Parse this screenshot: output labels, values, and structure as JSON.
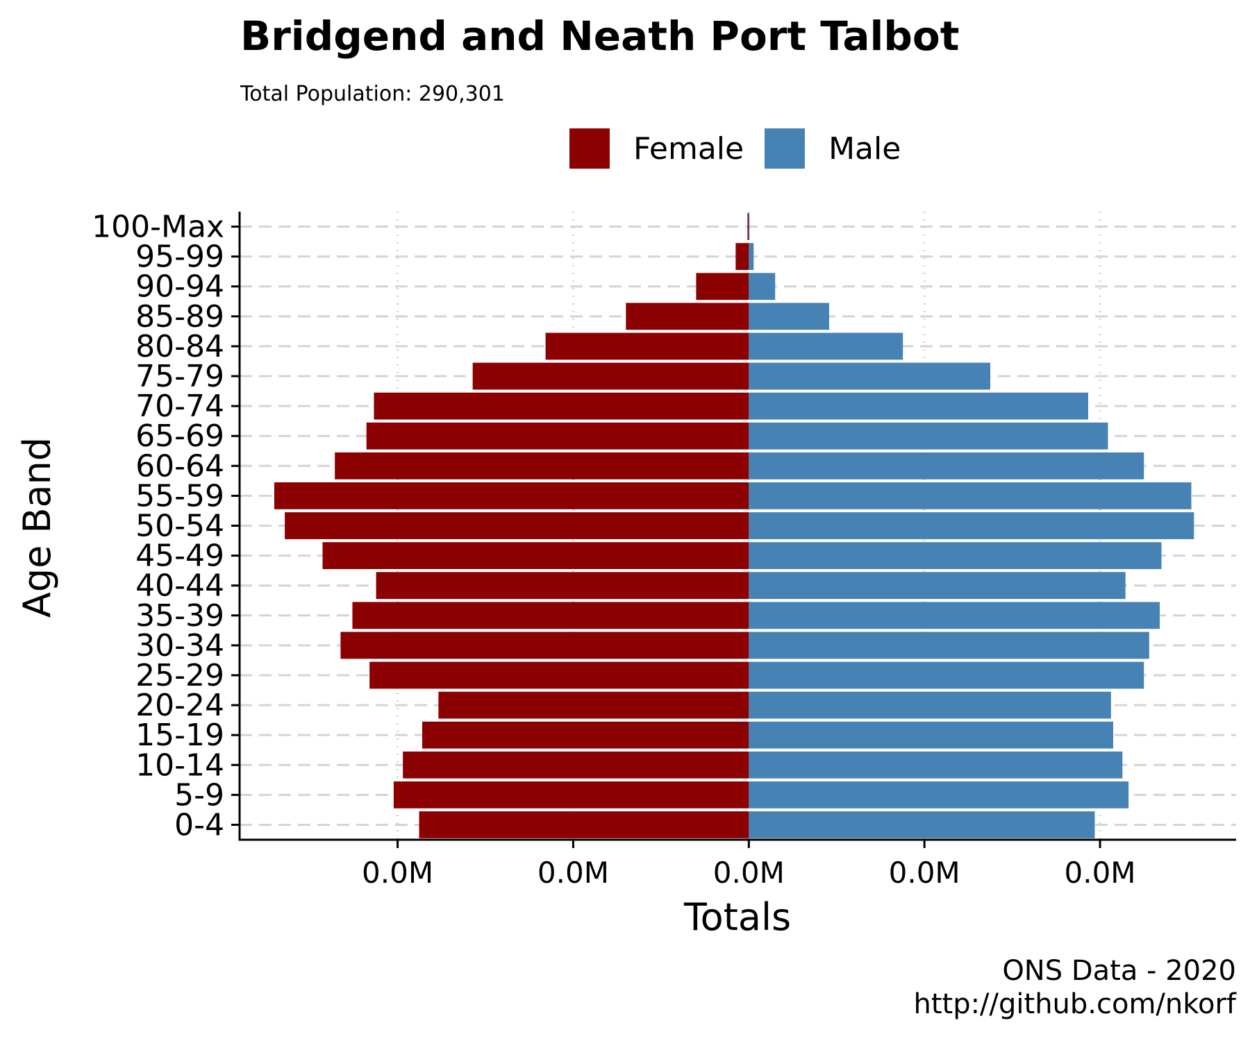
{
  "chart_data": {
    "type": "bar",
    "orientation": "horizontal-diverging",
    "title": "Bridgend and Neath Port Talbot",
    "subtitle": "Total Population:  290,301",
    "xlabel": "Totals",
    "ylabel": "Age Band",
    "categories": [
      "0-4",
      "5-9",
      "10-14",
      "15-19",
      "20-24",
      "25-29",
      "30-34",
      "35-39",
      "40-44",
      "45-49",
      "50-54",
      "55-59",
      "60-64",
      "65-69",
      "70-74",
      "75-79",
      "80-84",
      "85-89",
      "90-94",
      "95-99",
      "100-Max"
    ],
    "series": [
      {
        "name": "Female",
        "color": "#8B0000",
        "values": [
          7510,
          8090,
          7880,
          7440,
          7070,
          8640,
          9300,
          9030,
          8490,
          9710,
          10570,
          10810,
          9430,
          8710,
          8540,
          6290,
          4630,
          2800,
          1200,
          300,
          30
        ]
      },
      {
        "name": "Male",
        "color": "#4682B4",
        "values": [
          7880,
          8650,
          8510,
          8300,
          8250,
          9000,
          9120,
          9360,
          8580,
          9400,
          10140,
          10080,
          9000,
          8180,
          7730,
          5500,
          3510,
          1830,
          600,
          110,
          15
        ]
      }
    ],
    "xlim": [
      -11600,
      11100
    ],
    "x_tick_values": [
      -8000,
      -4000,
      0,
      4000,
      8000
    ],
    "x_tick_labels": [
      "0.0M",
      "0.0M",
      "0.0M",
      "0.0M",
      "0.0M"
    ],
    "legend_position": "top",
    "grid": {
      "horizontal": "dashed",
      "vertical": "dotted"
    },
    "caption": [
      "ONS Data - 2020",
      "http://github.com/nkorf"
    ]
  }
}
